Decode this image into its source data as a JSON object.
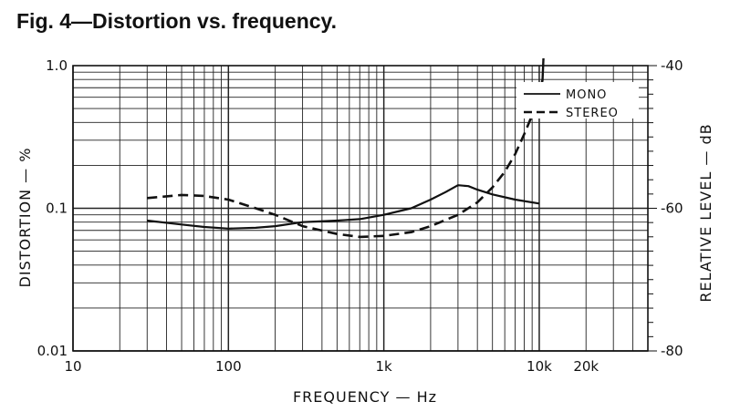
{
  "title": "Fig. 4—Distortion vs. frequency.",
  "chart_data": {
    "type": "line",
    "xlabel": "FREQUENCY — Hz",
    "ylabel": "DISTORTION — %",
    "y2label": "RELATIVE LEVEL — dB",
    "xscale": "log",
    "yscale": "log",
    "xlim": [
      10,
      50000
    ],
    "ylim": [
      0.01,
      1.0
    ],
    "y2lim": [
      -80,
      -40
    ],
    "grid": true,
    "legend_position": "top-right",
    "x_ticks": [
      {
        "value": 10,
        "label": "10"
      },
      {
        "value": 100,
        "label": "100"
      },
      {
        "value": 1000,
        "label": "1k"
      },
      {
        "value": 10000,
        "label": "10k"
      },
      {
        "value": 20000,
        "label": "20k"
      }
    ],
    "y_ticks": [
      {
        "value": 0.01,
        "label": "0.01"
      },
      {
        "value": 0.1,
        "label": "0.1"
      },
      {
        "value": 1.0,
        "label": "1.0"
      }
    ],
    "y2_ticks": [
      {
        "value": -80,
        "label": "-80"
      },
      {
        "value": -60,
        "label": "-60"
      },
      {
        "value": -40,
        "label": "-40"
      }
    ],
    "series": [
      {
        "name": "MONO",
        "style": "solid",
        "x": [
          30,
          50,
          70,
          100,
          150,
          200,
          300,
          500,
          700,
          1000,
          1500,
          2000,
          2500,
          3000,
          3500,
          4000,
          5000,
          7000,
          10000
        ],
        "y": [
          0.082,
          0.077,
          0.074,
          0.072,
          0.073,
          0.075,
          0.08,
          0.082,
          0.084,
          0.09,
          0.1,
          0.115,
          0.13,
          0.145,
          0.143,
          0.135,
          0.125,
          0.115,
          0.108
        ]
      },
      {
        "name": "STEREO",
        "style": "dashed",
        "x": [
          30,
          50,
          70,
          100,
          150,
          200,
          300,
          500,
          700,
          1000,
          1500,
          2000,
          3000,
          4000,
          5000,
          6000,
          7000,
          8000,
          9000,
          10000,
          10500
        ],
        "y": [
          0.118,
          0.124,
          0.122,
          0.115,
          0.1,
          0.09,
          0.075,
          0.066,
          0.063,
          0.064,
          0.068,
          0.075,
          0.09,
          0.11,
          0.14,
          0.18,
          0.24,
          0.33,
          0.45,
          0.62,
          0.8
        ]
      }
    ]
  }
}
